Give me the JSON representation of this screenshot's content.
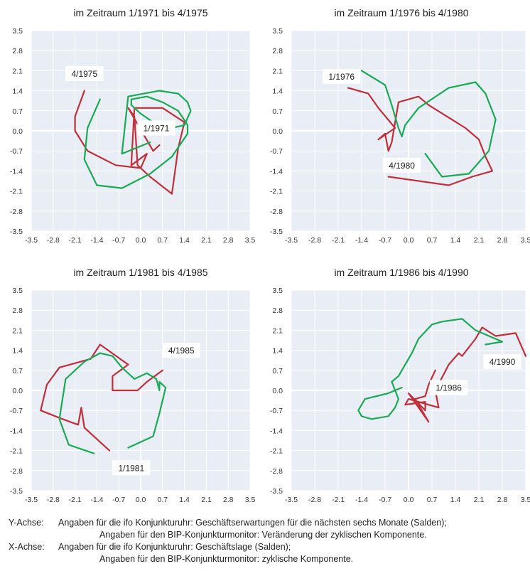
{
  "chart_data": [
    {
      "type": "line",
      "title": "im Zeitraum 1/1971 bis 4/1975",
      "xlim": [
        -3.5,
        3.5
      ],
      "ylim": [
        -3.5,
        3.5
      ],
      "ticks": [
        "-3.5",
        "-2.8",
        "-2.1",
        "-1.4",
        "-0.7",
        "0.0",
        "0.7",
        "1.4",
        "2.1",
        "2.8",
        "3.5"
      ],
      "grid": true,
      "series": [
        {
          "color": "#c0303a",
          "x": [
            -1.8,
            -2.1,
            -2.1,
            -1.7,
            -0.8,
            0.0,
            0.2,
            -0.3,
            -0.2,
            0.7,
            1.4,
            1.2,
            1.0,
            0.3,
            -0.1,
            -0.2,
            -0.4,
            0.4,
            0.6
          ],
          "y": [
            1.4,
            0.5,
            0.0,
            -0.7,
            -1.2,
            -1.3,
            -0.8,
            -1.2,
            0.8,
            0.8,
            0.3,
            -0.6,
            -2.2,
            -1.6,
            -1.2,
            0.5,
            0.8,
            -0.7,
            -0.5
          ]
        },
        {
          "color": "#1aaa55",
          "x": [
            -1.3,
            -1.7,
            -1.8,
            -1.4,
            -0.6,
            0.3,
            1.0,
            1.5,
            1.5,
            1.2,
            0.7,
            0.2,
            -0.3,
            -0.3,
            0.0,
            0.4,
            1.0,
            1.4,
            1.6,
            1.5,
            1.2,
            0.6,
            -0.4,
            -0.6,
            0.3
          ],
          "y": [
            1.1,
            0.1,
            -1.0,
            -1.9,
            -2.0,
            -1.5,
            -0.9,
            -0.1,
            0.2,
            0.7,
            1.0,
            1.2,
            1.1,
            0.9,
            0.6,
            0.3,
            0.1,
            0.2,
            0.7,
            1.0,
            1.3,
            1.4,
            1.2,
            -0.8,
            -0.4
          ]
        }
      ],
      "annotations": [
        {
          "text": "4/1975",
          "x": -1.8,
          "y": 2.0
        },
        {
          "text": "1/1971",
          "x": 0.5,
          "y": 0.1
        }
      ]
    },
    {
      "type": "line",
      "title": "im Zeitraum 1/1976 bis 4/1980",
      "xlim": [
        -3.5,
        3.5
      ],
      "ylim": [
        -3.5,
        3.5
      ],
      "ticks": [
        "-3.5",
        "-2.8",
        "-2.1",
        "-1.4",
        "-0.7",
        "0.0",
        "0.7",
        "1.4",
        "2.1",
        "2.8",
        "3.5"
      ],
      "grid": true,
      "series": [
        {
          "color": "#c0303a",
          "x": [
            -1.8,
            -1.2,
            -0.9,
            -0.4,
            -0.9,
            -0.7,
            -0.6,
            -0.5,
            -0.3,
            0.3,
            0.6,
            1.7,
            2.1,
            2.3,
            2.5,
            1.9,
            1.2,
            -0.6
          ],
          "y": [
            1.5,
            1.3,
            0.8,
            0.1,
            -0.3,
            -0.1,
            -0.7,
            -0.4,
            1.0,
            1.2,
            0.9,
            0.1,
            -0.3,
            -0.9,
            -1.4,
            -1.6,
            -1.9,
            -1.6
          ]
        },
        {
          "color": "#1aaa55",
          "x": [
            -1.4,
            -0.7,
            -0.5,
            -0.3,
            -0.2,
            -0.1,
            0.3,
            1.2,
            2.0,
            2.3,
            2.6,
            2.4,
            1.8,
            1.0,
            0.5
          ],
          "y": [
            2.1,
            1.6,
            0.9,
            0.1,
            -0.2,
            0.2,
            0.8,
            1.5,
            1.7,
            1.3,
            0.4,
            -0.7,
            -1.5,
            -1.6,
            -0.8
          ]
        }
      ],
      "annotations": [
        {
          "text": "1/1976",
          "x": -2.0,
          "y": 1.9
        },
        {
          "text": "4/1980",
          "x": -0.2,
          "y": -1.2
        }
      ]
    },
    {
      "type": "line",
      "title": "im Zeitraum 1/1981 bis 4/1985",
      "xlim": [
        -3.5,
        3.5
      ],
      "ylim": [
        -3.5,
        3.5
      ],
      "ticks": [
        "-3.5",
        "-2.8",
        "-2.1",
        "-1.4",
        "-0.7",
        "0.0",
        "0.7",
        "1.4",
        "2.1",
        "2.8",
        "3.5"
      ],
      "grid": true,
      "series": [
        {
          "color": "#c0303a",
          "x": [
            -1.0,
            -1.6,
            -1.8,
            -1.9,
            -2.0,
            -2.5,
            -3.2,
            -3.0,
            -2.6,
            -1.6,
            -1.3,
            -0.4,
            -0.9,
            -0.9,
            -0.4,
            -0.1,
            0.2,
            0.7
          ],
          "y": [
            -2.1,
            -1.5,
            -1.3,
            -0.6,
            -1.2,
            -1.0,
            -0.7,
            0.2,
            0.8,
            1.1,
            1.6,
            0.9,
            0.5,
            0.0,
            0.0,
            0.0,
            0.3,
            0.7
          ]
        },
        {
          "color": "#1aaa55",
          "x": [
            -1.5,
            -2.3,
            -2.6,
            -2.4,
            -1.8,
            -1.3,
            -0.9,
            -0.6,
            -0.2,
            0.2,
            0.5,
            0.6,
            0.6,
            0.8,
            0.6,
            0.4,
            -0.4
          ],
          "y": [
            -2.2,
            -1.9,
            -1.0,
            0.4,
            1.0,
            1.3,
            1.2,
            0.8,
            0.4,
            0.6,
            0.4,
            0.0,
            0.3,
            0.1,
            -0.8,
            -1.6,
            -2.0
          ]
        }
      ],
      "annotations": [
        {
          "text": "4/1985",
          "x": 1.3,
          "y": 1.4
        },
        {
          "text": "1/1981",
          "x": -0.3,
          "y": -2.7
        }
      ]
    },
    {
      "type": "line",
      "title": "im Zeitraum 1/1986 bis 4/1990",
      "xlim": [
        -3.5,
        3.5
      ],
      "ylim": [
        -3.5,
        3.5
      ],
      "ticks": [
        "-3.5",
        "-2.8",
        "-2.1",
        "-1.4",
        "-0.7",
        "0.0",
        "0.7",
        "1.4",
        "2.1",
        "2.8",
        "3.5"
      ],
      "grid": true,
      "series": [
        {
          "color": "#c0303a",
          "x": [
            0.8,
            0.6,
            0.5,
            0.2,
            0.6,
            0.0,
            0.5,
            0.5,
            -0.1,
            0.0,
            0.9,
            0.8,
            1.2,
            1.5,
            1.6,
            2.0,
            2.2,
            2.6,
            3.2,
            3.5
          ],
          "y": [
            0.7,
            0.2,
            -0.2,
            -0.3,
            -1.1,
            -0.1,
            -0.7,
            -0.4,
            -0.5,
            -0.3,
            -0.6,
            0.0,
            0.9,
            1.3,
            1.2,
            1.8,
            2.2,
            1.9,
            2.0,
            1.2
          ]
        },
        {
          "color": "#1aaa55",
          "x": [
            -0.2,
            -0.6,
            -1.3,
            -1.5,
            -1.4,
            -1.1,
            -0.6,
            -0.4,
            -0.3,
            -0.5,
            -0.3,
            0.1,
            0.3,
            0.7,
            1.0,
            1.6,
            2.0,
            2.4,
            2.8,
            2.3
          ],
          "y": [
            0.1,
            -0.1,
            -0.3,
            -0.7,
            -0.9,
            -1.0,
            -0.9,
            -0.6,
            -0.3,
            0.3,
            0.5,
            1.3,
            1.8,
            2.3,
            2.4,
            2.5,
            2.1,
            1.9,
            1.7,
            1.6
          ]
        }
      ],
      "annotations": [
        {
          "text": "1/1986",
          "x": 1.2,
          "y": 0.1
        },
        {
          "text": "4/1990",
          "x": 2.8,
          "y": 1.0
        }
      ]
    }
  ],
  "footnotes": {
    "y_label": "Y-Achse:",
    "y_line1": "Angaben für die ifo Konjunkturuhr: Geschäftserwartungen für die nächsten sechs Monate (Salden);",
    "y_line2": "Angaben für den BIP-Konjunkturmonitor: Veränderung der zyklischen Komponente.",
    "x_label": "X-Achse:",
    "x_line1": "Angaben für die ifo Konjunkturuhr: Geschäftslage (Salden);",
    "x_line2": "Angaben für den BIP-Konjunkturmonitor: zyklische Komponente."
  },
  "colors": {
    "plot_bg": "#e8edf6",
    "grid": "#ffffff",
    "red": "#c0303a",
    "green": "#1aaa55"
  }
}
